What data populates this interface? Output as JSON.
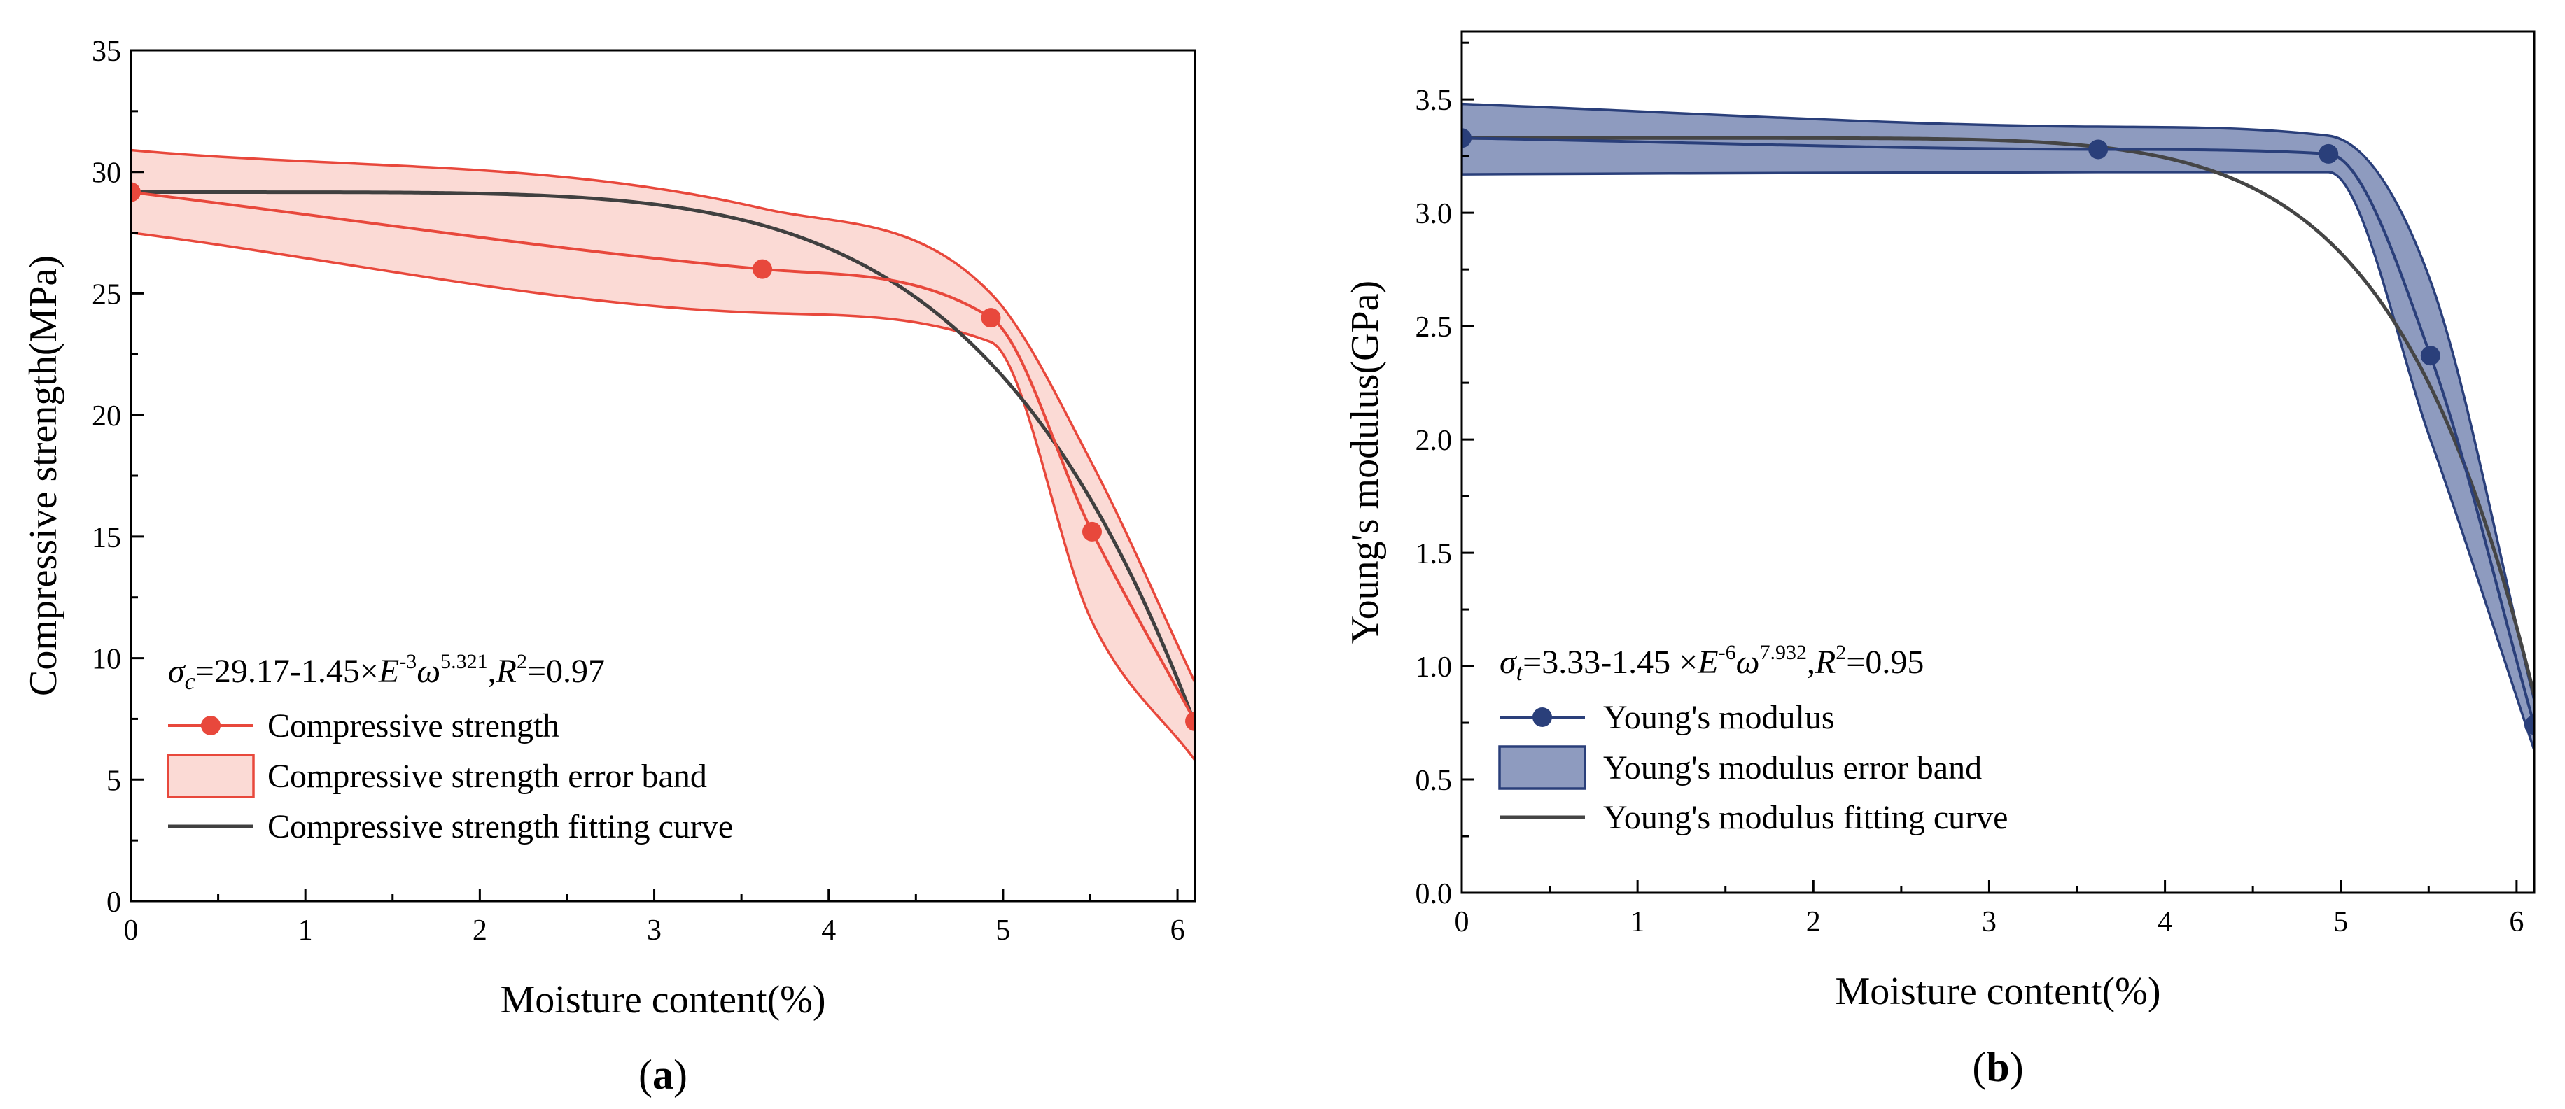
{
  "chart_data": [
    {
      "type": "line",
      "panel_label_open": "(",
      "panel_label_letter": "a",
      "panel_label_close": ")",
      "xlabel": "Moisture content(%)",
      "ylabel": "Compressive strength(MPa)",
      "xlim": [
        0,
        6.1
      ],
      "ylim": [
        0,
        35
      ],
      "xticks": [
        0,
        1,
        2,
        3,
        4,
        5,
        6
      ],
      "yticks": [
        0,
        5,
        10,
        15,
        20,
        25,
        30,
        35
      ],
      "grid": false,
      "legend_position": "bottom-left",
      "colors": {
        "series": "#e8483c",
        "band_fill": "#fbdad5",
        "band_edge": "#e8483c",
        "fit": "#404040"
      },
      "formula": {
        "symbol": "σ",
        "sub": "c",
        "a": "=29.17-1.45×",
        "E": "E",
        "exp1": "-3",
        "omega": "ω",
        "exp2": "5.321",
        "sep": ",",
        "R": "R",
        "exp3": "2",
        "r2": "=0.97"
      },
      "series": [
        {
          "name": "Compressive strength",
          "x": [
            0,
            3.62,
            4.93,
            5.51,
            6.1
          ],
          "y": [
            29.17,
            26.0,
            24.0,
            15.2,
            7.4
          ]
        }
      ],
      "error_band": {
        "name": "Compressive strength error band",
        "x": [
          0,
          3.62,
          4.93,
          5.51,
          6.1
        ],
        "upper": [
          30.9,
          28.5,
          25.0,
          18.0,
          9.0
        ],
        "lower": [
          27.5,
          24.2,
          23.0,
          11.5,
          5.8
        ]
      },
      "fit": {
        "name": "Compressive strength fitting curve",
        "a": 29.17,
        "b": 0.00145,
        "n": 5.321
      }
    },
    {
      "type": "line",
      "panel_label_open": "(",
      "panel_label_letter": "b",
      "panel_label_close": ")",
      "xlabel": "Moisture content(%)",
      "ylabel": "Young's modulus(GPa)",
      "xlim": [
        0,
        6.1
      ],
      "ylim": [
        0,
        3.8
      ],
      "xticks": [
        0,
        1,
        2,
        3,
        4,
        5,
        6
      ],
      "yticks": [
        0.0,
        0.5,
        1.0,
        1.5,
        2.0,
        2.5,
        3.0,
        3.5
      ],
      "grid": false,
      "legend_position": "bottom-left",
      "colors": {
        "series": "#2a3f7a",
        "band_fill": "#8e9bbf",
        "band_edge": "#2a3f7a",
        "fit": "#454545"
      },
      "formula": {
        "symbol": "σ",
        "sub": "t",
        "a": "=3.33-1.45 ×",
        "E": "E",
        "exp1": "-6",
        "omega": "ω",
        "exp2": "7.932",
        "sep": ",",
        "R": "R",
        "exp3": "2",
        "r2": "=0.95"
      },
      "series": [
        {
          "name": "Young's modulus",
          "x": [
            0,
            3.62,
            4.93,
            5.51,
            6.1
          ],
          "y": [
            3.33,
            3.28,
            3.26,
            2.37,
            0.74
          ]
        }
      ],
      "error_band": {
        "name": "Young's modulus error band",
        "x": [
          0,
          3.62,
          4.93,
          5.51,
          6.1
        ],
        "upper": [
          3.48,
          3.38,
          3.34,
          2.7,
          0.85
        ],
        "lower": [
          3.17,
          3.18,
          3.18,
          2.0,
          0.63
        ]
      },
      "fit": {
        "name": "Young's modulus fitting curve",
        "a": 3.33,
        "b": 1.45e-06,
        "n": 7.932
      }
    }
  ]
}
